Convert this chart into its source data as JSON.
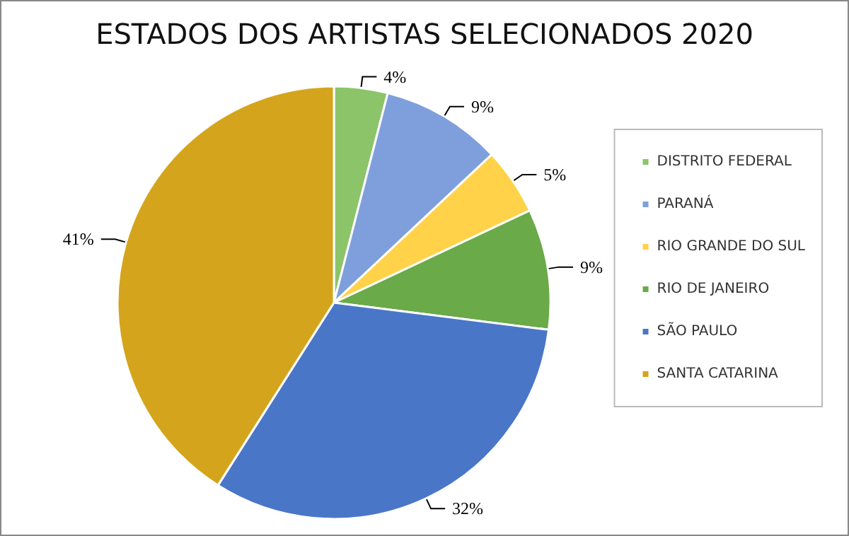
{
  "chart_data": {
    "type": "pie",
    "title": "ESTADOS DOS ARTISTAS SELECIONADOS 2020",
    "categories": [
      "DISTRITO FEDERAL",
      "PARANÁ",
      "RIO GRANDE DO SUL",
      "RIO DE JANEIRO",
      "SÃO PAULO",
      "SANTA CATARINA"
    ],
    "values": [
      4,
      9,
      5,
      9,
      32,
      41
    ],
    "value_labels": [
      "4%",
      "9%",
      "5%",
      "9%",
      "32%",
      "41%"
    ],
    "colors": [
      "#8cc46a",
      "#7f9fdc",
      "#ffd24a",
      "#6aaa48",
      "#4a76c8",
      "#d4a51c"
    ],
    "legend": "right"
  }
}
